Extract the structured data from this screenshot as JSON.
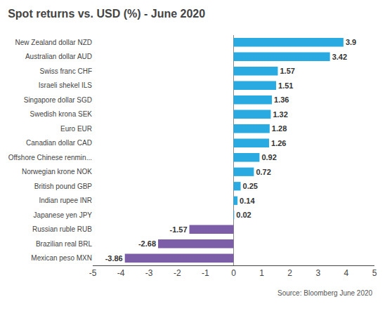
{
  "chart_data": {
    "type": "bar",
    "orientation": "horizontal",
    "title": "Spot returns vs. USD (%) - June 2020",
    "annotations": [
      "Source: Bloomberg June 2020"
    ],
    "categories": [
      "New Zealand dollar NZD",
      "Australian dollar AUD",
      "Swiss franc CHF",
      "Israeli shekel ILS",
      "Singapore dollar SGD",
      "Swedish krona SEK",
      "Euro EUR",
      "Canadian dollar CAD",
      "Offshore Chinese renmin...",
      "Norwegian krone NOK",
      "British pound GBP",
      "Indian rupee INR",
      "Japanese yen JPY",
      "Russian ruble RUB",
      "Brazilian real BRL",
      "Mexican peso MXN"
    ],
    "values": [
      3.9,
      3.42,
      1.57,
      1.51,
      1.36,
      1.32,
      1.28,
      1.26,
      0.92,
      0.72,
      0.25,
      0.14,
      0.02,
      -1.57,
      -2.68,
      -3.86
    ],
    "colors": [
      "#29ABE2",
      "#29ABE2",
      "#29ABE2",
      "#29ABE2",
      "#29ABE2",
      "#29ABE2",
      "#29ABE2",
      "#29ABE2",
      "#29ABE2",
      "#29ABE2",
      "#29ABE2",
      "#29ABE2",
      "#29ABE2",
      "#7B5EA7",
      "#7B5EA7",
      "#7B5EA7"
    ],
    "xlim": [
      -5,
      5
    ],
    "xticks": [
      -5,
      -4,
      -3,
      -2,
      -1,
      0,
      1,
      2,
      3,
      4,
      5
    ],
    "data_labels": true,
    "grid": false
  }
}
